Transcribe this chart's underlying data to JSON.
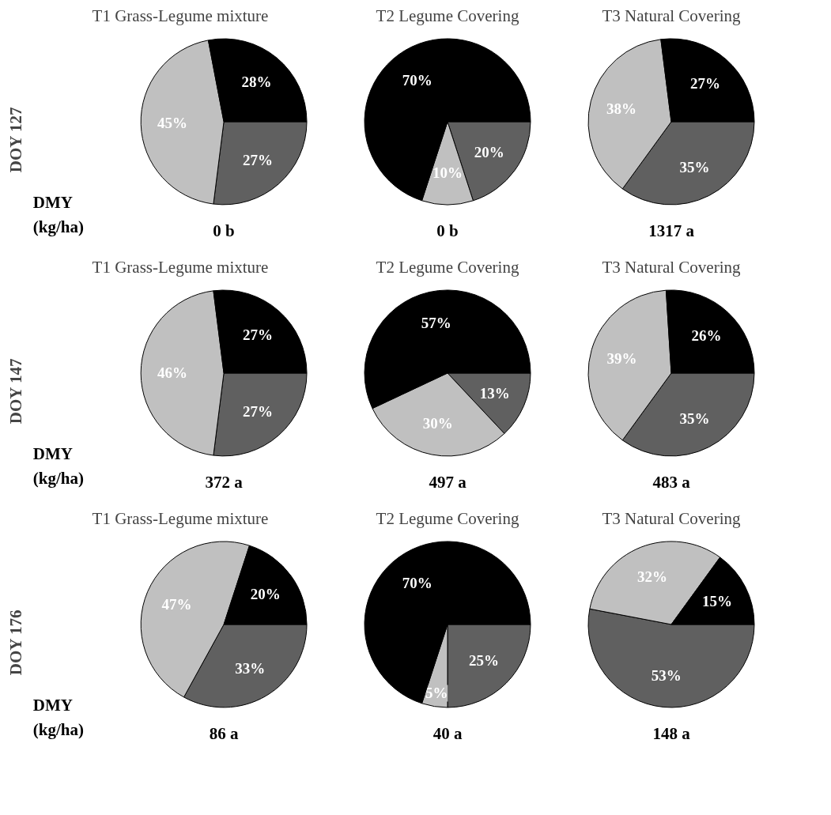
{
  "chart_data": [
    {
      "type": "pie",
      "title": "T1 Grass-Legume mixture",
      "ylabel": "DOY 127",
      "xlabel": "0 b",
      "annotations": [
        "DMY (kg/ha)"
      ],
      "categories": [
        null,
        null,
        null
      ],
      "values": [
        27,
        45,
        28
      ],
      "value_labels": [
        "27%",
        "45%",
        "28%"
      ],
      "colors": [
        "#606060",
        "#c0c0c0",
        "#000000"
      ]
    },
    {
      "type": "pie",
      "title": "T2 Legume Covering",
      "xlabel": "0 b",
      "categories": [
        null,
        null,
        null
      ],
      "values": [
        20,
        10,
        70
      ],
      "value_labels": [
        "20%",
        "10%",
        "70%"
      ],
      "colors": [
        "#606060",
        "#c0c0c0",
        "#000000"
      ]
    },
    {
      "type": "pie",
      "title": "T3 Natural Covering",
      "xlabel": "1317 a",
      "categories": [
        null,
        null,
        null
      ],
      "values": [
        35,
        38,
        27
      ],
      "value_labels": [
        "35%",
        "38%",
        "27%"
      ],
      "colors": [
        "#606060",
        "#c0c0c0",
        "#000000"
      ]
    },
    {
      "type": "pie",
      "title": "T1 Grass-Legume mixture",
      "ylabel": "DOY 147",
      "xlabel": "372 a",
      "annotations": [
        "DMY (kg/ha)"
      ],
      "categories": [
        null,
        null,
        null
      ],
      "values": [
        27,
        46,
        27
      ],
      "value_labels": [
        "27%",
        "46%",
        "27%"
      ],
      "colors": [
        "#606060",
        "#c0c0c0",
        "#000000"
      ]
    },
    {
      "type": "pie",
      "title": "T2 Legume Covering",
      "xlabel": "497 a",
      "categories": [
        null,
        null,
        null
      ],
      "values": [
        13,
        30,
        57
      ],
      "value_labels": [
        "13%",
        "30%",
        "57%"
      ],
      "colors": [
        "#606060",
        "#c0c0c0",
        "#000000"
      ]
    },
    {
      "type": "pie",
      "title": "T3 Natural Covering",
      "xlabel": "483 a",
      "categories": [
        null,
        null,
        null
      ],
      "values": [
        35,
        39,
        26
      ],
      "value_labels": [
        "35%",
        "39%",
        "26%"
      ],
      "colors": [
        "#606060",
        "#c0c0c0",
        "#000000"
      ]
    },
    {
      "type": "pie",
      "title": "T1 Grass-Legume mixture",
      "ylabel": "DOY 176",
      "xlabel": "86 a",
      "annotations": [
        "DMY (kg/ha)"
      ],
      "categories": [
        null,
        null,
        null
      ],
      "values": [
        33,
        47,
        20
      ],
      "value_labels": [
        "33%",
        "47%",
        "20%"
      ],
      "colors": [
        "#606060",
        "#c0c0c0",
        "#000000"
      ]
    },
    {
      "type": "pie",
      "title": "T2 Legume Covering",
      "xlabel": "40 a",
      "categories": [
        null,
        null,
        null
      ],
      "values": [
        25,
        5,
        70
      ],
      "value_labels": [
        "25%",
        "5%",
        "70%"
      ],
      "colors": [
        "#606060",
        "#c0c0c0",
        "#000000"
      ]
    },
    {
      "type": "pie",
      "title": "T3 Natural Covering",
      "xlabel": "148 a",
      "categories": [
        null,
        null,
        null
      ],
      "values": [
        53,
        32,
        15
      ],
      "value_labels": [
        "53%",
        "32%",
        "15%"
      ],
      "colors": [
        "#606060",
        "#c0c0c0",
        "#000000"
      ]
    }
  ]
}
